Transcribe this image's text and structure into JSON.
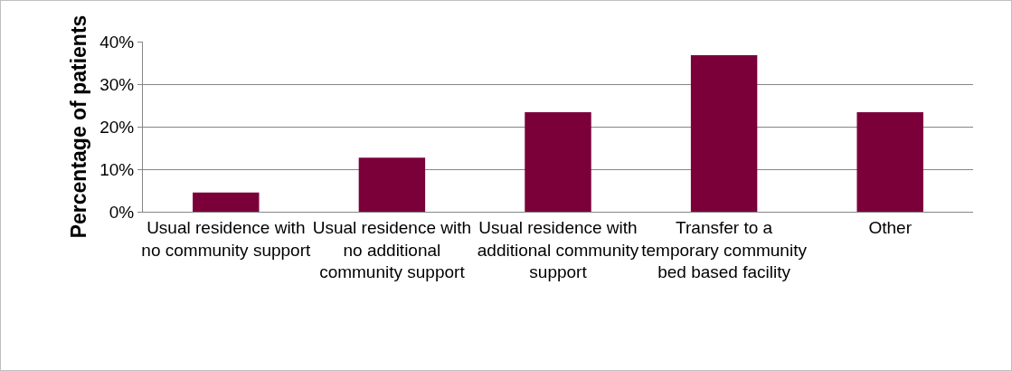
{
  "chart_data": {
    "type": "bar",
    "ylabel": "Percentage of patients",
    "categories": [
      "Usual residence with no community support",
      "Usual residence with no additional community support",
      "Usual residence with additional community support",
      "Transfer to a temporary community bed based facility",
      "Other"
    ],
    "values": [
      4.5,
      12.7,
      23.4,
      36.8,
      23.4
    ],
    "color": "#7b003a",
    "ylim": [
      0,
      40
    ],
    "yticks": [
      {
        "value": 0,
        "label": "0%"
      },
      {
        "value": 10,
        "label": "10%"
      },
      {
        "value": 20,
        "label": "20%"
      },
      {
        "value": 30,
        "label": "30%"
      },
      {
        "value": 40,
        "label": "40%"
      }
    ],
    "grid": "y"
  }
}
